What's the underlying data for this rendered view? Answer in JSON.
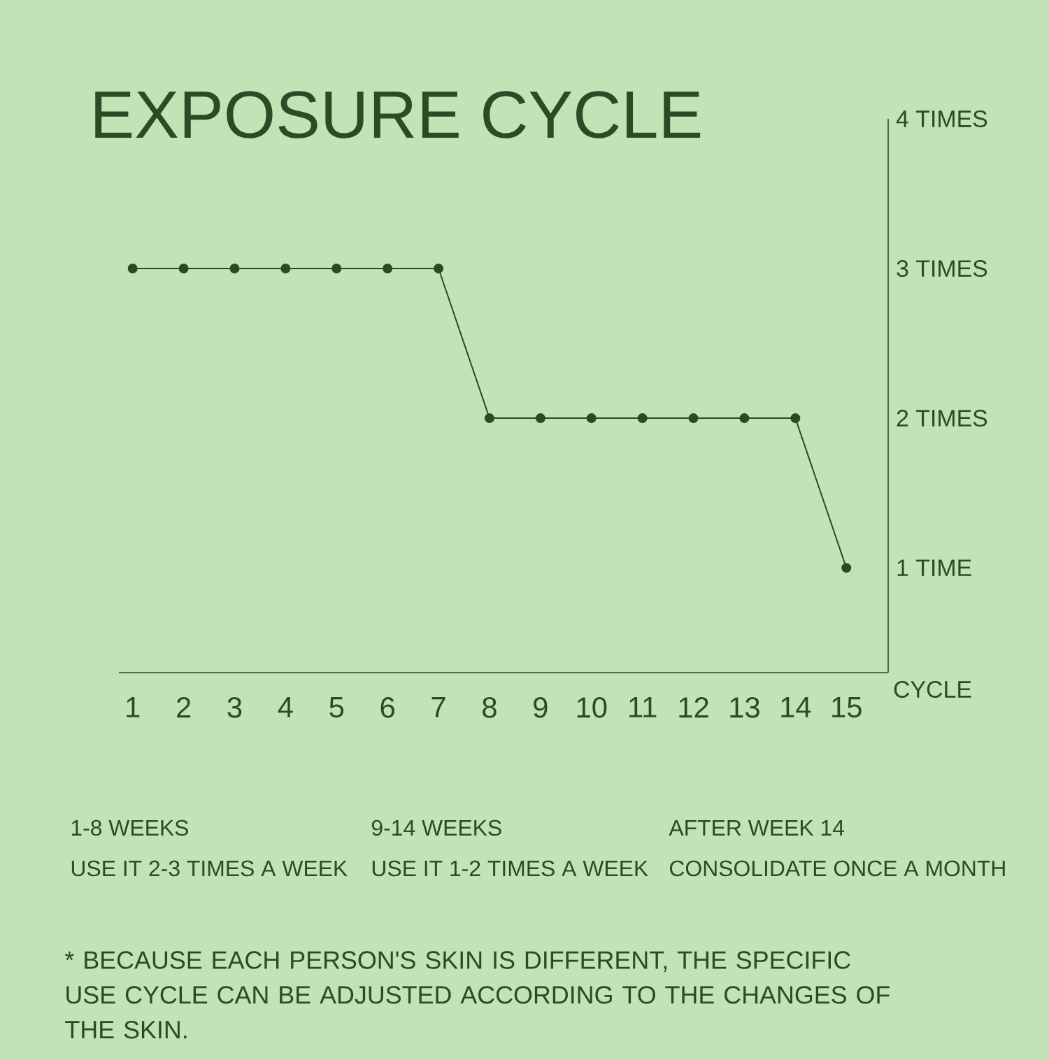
{
  "chart_data": {
    "type": "line",
    "title": "EXPOSURE CYCLE",
    "xlabel": "CYCLE",
    "categories": [
      "1",
      "2",
      "3",
      "4",
      "5",
      "6",
      "7",
      "8",
      "9",
      "10",
      "11",
      "12",
      "13",
      "14",
      "15"
    ],
    "series": [
      {
        "color": "#2b4a22",
        "values": [
          3,
          3,
          3,
          3,
          3,
          3,
          3,
          2,
          2,
          2,
          2,
          2,
          2,
          2,
          1
        ]
      }
    ],
    "ylim": [
      0.3,
      4
    ],
    "yticks": [
      {
        "value": 1,
        "label": "1 TIME"
      },
      {
        "value": 2,
        "label": "2 TIMES"
      },
      {
        "value": 3,
        "label": "3 TIMES"
      },
      {
        "value": 4,
        "label": "4 TIMES"
      }
    ],
    "marker": "circle",
    "line_style": "solid",
    "grid": false,
    "annotations": [
      "1-8 WEEKS",
      "USE IT 2-3 TIMES A WEEK",
      "9-14 WEEKS",
      "USE IT 1-2 TIMES A WEEK",
      "AFTER WEEK 14",
      "CONSOLIDATE ONCE A MONTH",
      "* BECAUSE EACH PERSON'S SKIN IS DIFFERENT, THE SPECIFIC USE CYCLE CAN BE ADJUSTED ACCORDING TO THE CHANGES OF THE SKIN."
    ]
  }
}
